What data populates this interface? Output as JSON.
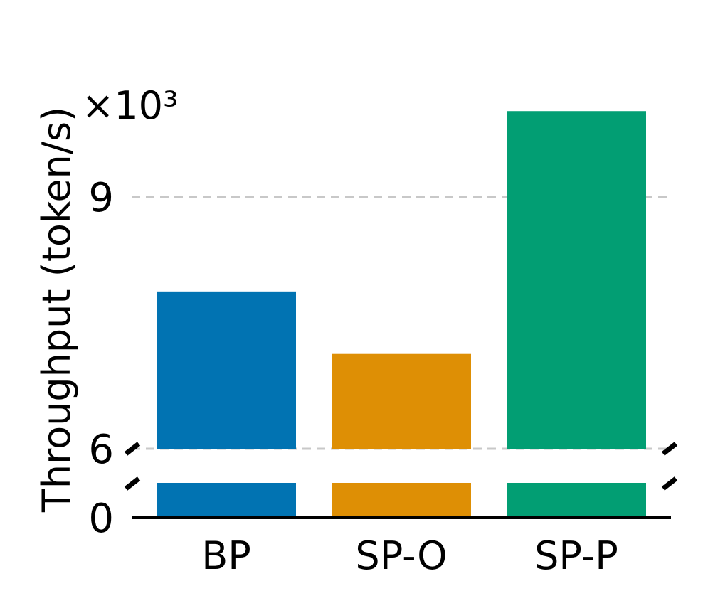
{
  "chart_data": {
    "type": "bar",
    "title": "",
    "xlabel": "",
    "ylabel": "Throughput (token/s)",
    "y_multiplier": "×10³",
    "categories": [
      "BP",
      "SP-O",
      "SP-P"
    ],
    "values": [
      7875,
      7130,
      10025
    ],
    "colors": [
      "#0173b2",
      "#de8f05",
      "#029e73"
    ],
    "broken_axis": true,
    "upper_ylim": [
      6000,
      10400
    ],
    "lower_ylim": [
      0,
      600
    ],
    "yticks": [
      {
        "value": 0,
        "label": "0"
      },
      {
        "value": 6000,
        "label": "6"
      },
      {
        "value": 9000,
        "label": "9"
      }
    ],
    "grid": "horizontal dashed",
    "grid_color": "#c8c8c8",
    "legend": "none"
  }
}
